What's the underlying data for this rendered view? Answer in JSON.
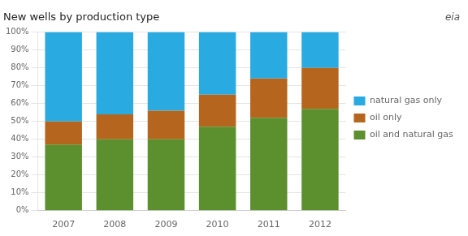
{
  "chart_data": {
    "type": "bar",
    "title": "New wells by production type",
    "categories": [
      "2007",
      "2008",
      "2009",
      "2010",
      "2011",
      "2012"
    ],
    "series": [
      {
        "name": "oil and natural gas",
        "color": "#5c8f2e",
        "values": [
          37,
          40,
          40,
          47,
          52,
          57
        ]
      },
      {
        "name": "oil only",
        "color": "#b5651d",
        "values": [
          13,
          14,
          16,
          18,
          22,
          23
        ]
      },
      {
        "name": "natural gas only",
        "color": "#29abe2",
        "values": [
          50,
          46,
          44,
          35,
          26,
          20
        ]
      }
    ],
    "stacked": true,
    "ylim": [
      0,
      100
    ],
    "yticks": [
      {
        "value": 0,
        "label": "0%"
      },
      {
        "value": 10,
        "label": "10%"
      },
      {
        "value": 20,
        "label": "20%"
      },
      {
        "value": 30,
        "label": "30%"
      },
      {
        "value": 40,
        "label": "40%"
      },
      {
        "value": 50,
        "label": "50%"
      },
      {
        "value": 60,
        "label": "60%"
      },
      {
        "value": 70,
        "label": "70%"
      },
      {
        "value": 80,
        "label": "80%"
      },
      {
        "value": 90,
        "label": "90%"
      },
      {
        "value": 100,
        "label": "100%"
      }
    ],
    "grid": true,
    "legend": "right",
    "annotations": [
      "eia"
    ]
  }
}
